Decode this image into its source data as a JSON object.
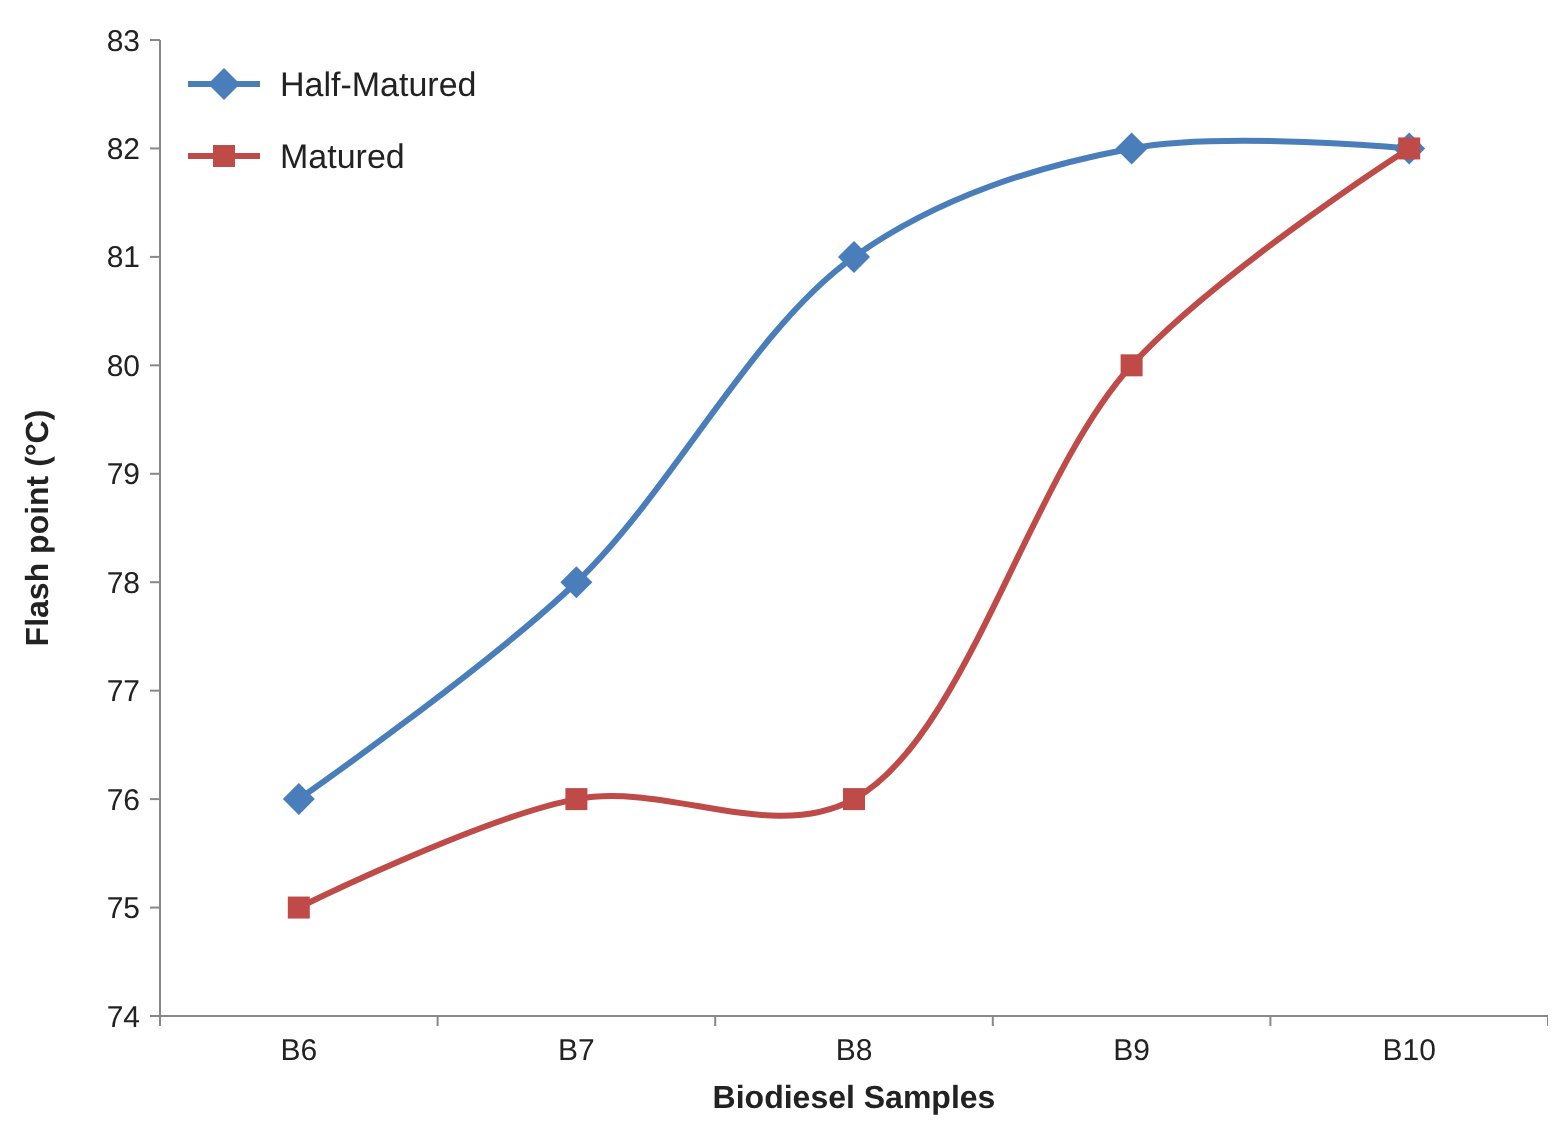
{
  "chart_data": {
    "type": "line",
    "xlabel": "Biodiesel Samples",
    "ylabel": "Flash point (°C)",
    "categories": [
      "B6",
      "B7",
      "B8",
      "B9",
      "B10"
    ],
    "series": [
      {
        "name": "Half-Matured",
        "color": "#4a7ebb",
        "marker": "diamond",
        "values": [
          76,
          78,
          81,
          82,
          82
        ]
      },
      {
        "name": "Matured",
        "color": "#be4b48",
        "marker": "square",
        "values": [
          75,
          76,
          76,
          80,
          82
        ]
      }
    ],
    "ylim": [
      74,
      83
    ],
    "yticks": [
      74,
      75,
      76,
      77,
      78,
      79,
      80,
      81,
      82,
      83
    ],
    "grid": false,
    "legend": "top left",
    "line_style": "solid"
  }
}
